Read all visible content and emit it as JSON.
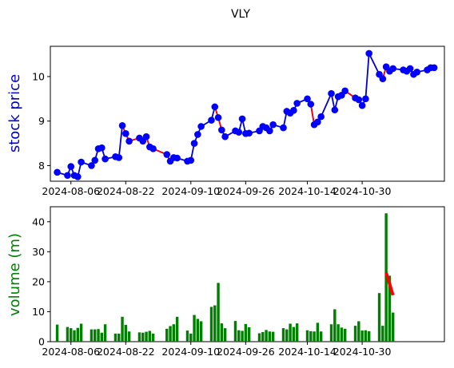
{
  "figure": {
    "title": "VLY"
  },
  "chart_data": [
    {
      "type": "line",
      "ylabel": "stock price",
      "ylabel_color": "#0000cc",
      "ylim": [
        7.65,
        10.68
      ],
      "yticks": [
        8,
        9,
        10
      ],
      "xlim": [
        "2024-07-31",
        "2024-11-23"
      ],
      "xticks": [
        "2024-08-06",
        "2024-08-22",
        "2024-09-10",
        "2024-09-26",
        "2024-10-14",
        "2024-10-30"
      ],
      "series_color": "#0000cc",
      "marker_color": "#0000ff",
      "segment_color": "#ff0000",
      "x": [
        "2024-08-02",
        "2024-08-05",
        "2024-08-06",
        "2024-08-07",
        "2024-08-08",
        "2024-08-09",
        "2024-08-12",
        "2024-08-13",
        "2024-08-14",
        "2024-08-15",
        "2024-08-16",
        "2024-08-19",
        "2024-08-20",
        "2024-08-21",
        "2024-08-22",
        "2024-08-23",
        "2024-08-26",
        "2024-08-27",
        "2024-08-28",
        "2024-08-29",
        "2024-08-30",
        "2024-09-03",
        "2024-09-04",
        "2024-09-05",
        "2024-09-06",
        "2024-09-09",
        "2024-09-10",
        "2024-09-11",
        "2024-09-12",
        "2024-09-13",
        "2024-09-16",
        "2024-09-17",
        "2024-09-18",
        "2024-09-19",
        "2024-09-20",
        "2024-09-23",
        "2024-09-24",
        "2024-09-25",
        "2024-09-26",
        "2024-09-27",
        "2024-09-30",
        "2024-10-01",
        "2024-10-02",
        "2024-10-03",
        "2024-10-04",
        "2024-10-07",
        "2024-10-08",
        "2024-10-09",
        "2024-10-10",
        "2024-10-11",
        "2024-10-14",
        "2024-10-15",
        "2024-10-16",
        "2024-10-17",
        "2024-10-18",
        "2024-10-21",
        "2024-10-22",
        "2024-10-23",
        "2024-10-24",
        "2024-10-25",
        "2024-10-28",
        "2024-10-29",
        "2024-10-30",
        "2024-10-31",
        "2024-11-01",
        "2024-11-04",
        "2024-11-05",
        "2024-11-06",
        "2024-11-07",
        "2024-11-08",
        "2024-11-11",
        "2024-11-12",
        "2024-11-13",
        "2024-11-14",
        "2024-11-15",
        "2024-11-18",
        "2024-11-19",
        "2024-11-20"
      ],
      "values": [
        7.85,
        7.78,
        7.98,
        7.78,
        7.75,
        8.08,
        8.0,
        8.12,
        8.38,
        8.4,
        8.15,
        8.2,
        8.18,
        8.9,
        8.72,
        8.55,
        8.62,
        8.55,
        8.65,
        8.42,
        8.38,
        8.25,
        8.1,
        8.18,
        8.17,
        8.1,
        8.12,
        8.5,
        8.7,
        8.88,
        9.02,
        9.32,
        9.08,
        8.8,
        8.65,
        8.78,
        8.75,
        9.05,
        8.72,
        8.73,
        8.78,
        8.88,
        8.85,
        8.78,
        8.92,
        8.85,
        9.22,
        9.18,
        9.24,
        9.4,
        9.5,
        9.38,
        8.92,
        8.98,
        9.1,
        9.62,
        9.25,
        9.55,
        9.58,
        9.68,
        9.52,
        9.48,
        9.35,
        9.5,
        10.52,
        10.05,
        9.95,
        10.22,
        10.12,
        10.18,
        10.15,
        10.12,
        10.18,
        10.05,
        10.1,
        10.15,
        10.2,
        10.2
      ],
      "red_segments": [
        {
          "from": "2024-08-21",
          "to": "2024-09-04"
        },
        {
          "from": "2024-09-17",
          "to": "2024-09-19"
        },
        {
          "from": "2024-09-26",
          "to": "2024-09-27"
        },
        {
          "from": "2024-10-14",
          "to": "2024-10-16"
        },
        {
          "from": "2024-10-25",
          "to": "2024-10-30"
        },
        {
          "from": "2024-11-04",
          "to": "2024-11-06"
        },
        {
          "from": "2024-11-07",
          "to": "2024-11-08"
        }
      ]
    },
    {
      "type": "bar",
      "ylabel": "volume (m)",
      "ylabel_color": "#008000",
      "ylim": [
        0,
        45
      ],
      "yticks": [
        0,
        10,
        20,
        30,
        40
      ],
      "xlim": [
        "2024-07-31",
        "2024-11-23"
      ],
      "xticks": [
        "2024-08-06",
        "2024-08-22",
        "2024-09-10",
        "2024-09-26",
        "2024-10-14",
        "2024-10-30"
      ],
      "bar_color": "#008000",
      "x": [
        "2024-08-02",
        "2024-08-05",
        "2024-08-06",
        "2024-08-07",
        "2024-08-08",
        "2024-08-09",
        "2024-08-12",
        "2024-08-13",
        "2024-08-14",
        "2024-08-15",
        "2024-08-16",
        "2024-08-19",
        "2024-08-20",
        "2024-08-21",
        "2024-08-22",
        "2024-08-23",
        "2024-08-26",
        "2024-08-27",
        "2024-08-28",
        "2024-08-29",
        "2024-08-30",
        "2024-09-03",
        "2024-09-04",
        "2024-09-05",
        "2024-09-06",
        "2024-09-09",
        "2024-09-10",
        "2024-09-11",
        "2024-09-12",
        "2024-09-13",
        "2024-09-16",
        "2024-09-17",
        "2024-09-18",
        "2024-09-19",
        "2024-09-20",
        "2024-09-23",
        "2024-09-24",
        "2024-09-25",
        "2024-09-26",
        "2024-09-27",
        "2024-09-30",
        "2024-10-01",
        "2024-10-02",
        "2024-10-03",
        "2024-10-04",
        "2024-10-07",
        "2024-10-08",
        "2024-10-09",
        "2024-10-10",
        "2024-10-11",
        "2024-10-14",
        "2024-10-15",
        "2024-10-16",
        "2024-10-17",
        "2024-10-18",
        "2024-10-21",
        "2024-10-22",
        "2024-10-23",
        "2024-10-24",
        "2024-10-25",
        "2024-10-28",
        "2024-10-29",
        "2024-10-30",
        "2024-10-31",
        "2024-11-01",
        "2024-11-04",
        "2024-11-05",
        "2024-11-06",
        "2024-11-07"
      ],
      "values": [
        5.7,
        4.9,
        4.5,
        3.8,
        4.6,
        6.0,
        4.1,
        4.1,
        4.2,
        3.0,
        5.8,
        2.7,
        2.7,
        8.3,
        5.6,
        3.4,
        3.1,
        3.0,
        3.3,
        3.6,
        2.7,
        4.3,
        5.2,
        5.8,
        8.3,
        3.7,
        2.7,
        8.9,
        7.6,
        6.8,
        11.6,
        12.1,
        19.6,
        6.1,
        4.5,
        6.9,
        3.8,
        3.6,
        5.9,
        4.8,
        2.8,
        3.2,
        3.9,
        3.4,
        3.3,
        4.5,
        4.1,
        6.0,
        4.9,
        6.1,
        3.8,
        3.5,
        3.4,
        6.3,
        3.4,
        5.8,
        10.8,
        5.8,
        4.7,
        4.3,
        5.3,
        6.8,
        3.7,
        3.8,
        3.5,
        16.2,
        5.3,
        42.8,
        22.0
      ],
      "extra_bar": {
        "x": "2024-11-08",
        "value": 9.7
      },
      "red_segment": {
        "from": {
          "x": "2024-11-06",
          "y": 23.0
        },
        "to": {
          "x": "2024-11-08",
          "y": 15.5
        }
      }
    }
  ]
}
